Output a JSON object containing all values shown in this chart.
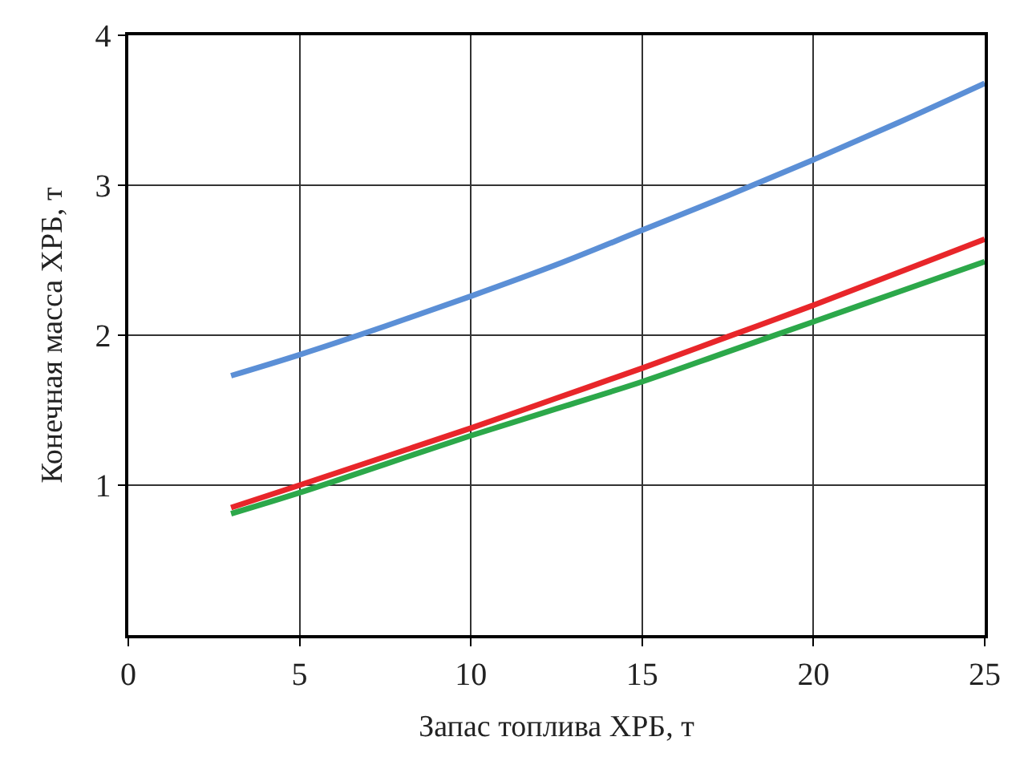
{
  "chart_data": {
    "type": "line",
    "xlabel": "Запас топлива ХРБ, т",
    "ylabel": "Конечная масса ХРБ, т",
    "x": [
      3,
      5,
      7.5,
      10,
      12.5,
      15,
      17.5,
      20,
      22.5,
      25
    ],
    "series": [
      {
        "color": "#5b8fd6",
        "values": [
          1.73,
          1.87,
          2.06,
          2.26,
          2.47,
          2.7,
          2.93,
          3.17,
          3.42,
          3.68
        ]
      },
      {
        "color": "#e8262a",
        "values": [
          0.85,
          1.0,
          1.19,
          1.38,
          1.58,
          1.78,
          1.99,
          2.2,
          2.42,
          2.64
        ]
      },
      {
        "color": "#2ca84a",
        "values": [
          0.81,
          0.95,
          1.14,
          1.33,
          1.51,
          1.69,
          1.89,
          2.09,
          2.29,
          2.49
        ]
      }
    ],
    "xlim": [
      0,
      25
    ],
    "ylim": [
      0,
      4
    ],
    "xticks": [
      0,
      5,
      10,
      15,
      20,
      25
    ],
    "yticks": [
      1,
      2,
      3,
      4
    ],
    "grid": true,
    "marker": "none",
    "line_style": "solid"
  }
}
